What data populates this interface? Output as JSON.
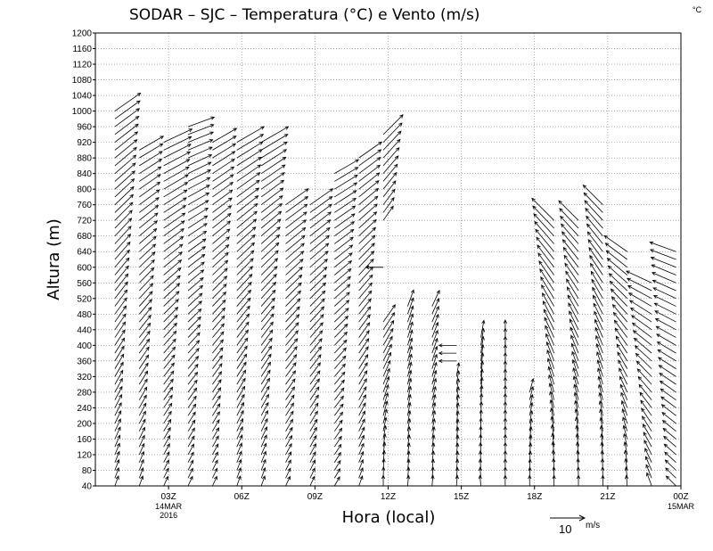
{
  "chart_data": {
    "type": "vector-field",
    "title": "SODAR – SJC – Temperatura (°C) e Vento (m/s)",
    "corner_unit": "°C",
    "xlabel": "Hora (local)",
    "ylabel": "Altura (m)",
    "ylim": [
      40,
      1200
    ],
    "y_ticks": [
      40,
      80,
      120,
      160,
      200,
      240,
      280,
      320,
      360,
      400,
      440,
      480,
      520,
      560,
      600,
      640,
      680,
      720,
      760,
      800,
      840,
      880,
      920,
      960,
      1000,
      1040,
      1080,
      1120,
      1160,
      1200
    ],
    "xlim_hours": [
      0,
      24
    ],
    "x_ticks": [
      {
        "hour": 3,
        "label": "03Z",
        "sub1": "14MAR",
        "sub2": "2016"
      },
      {
        "hour": 6,
        "label": "06Z",
        "sub1": "",
        "sub2": ""
      },
      {
        "hour": 9,
        "label": "09Z",
        "sub1": "",
        "sub2": ""
      },
      {
        "hour": 12,
        "label": "12Z",
        "sub1": "",
        "sub2": ""
      },
      {
        "hour": 15,
        "label": "15Z",
        "sub1": "",
        "sub2": ""
      },
      {
        "hour": 18,
        "label": "18Z",
        "sub1": "",
        "sub2": ""
      },
      {
        "hour": 21,
        "label": "21Z",
        "sub1": "",
        "sub2": ""
      },
      {
        "hour": 24,
        "label": "00Z",
        "sub1": "15MAR",
        "sub2": ""
      }
    ],
    "grid": true,
    "legend": {
      "value": "10",
      "unit": "m/s",
      "placement": "bottom-right"
    },
    "series": [
      {
        "hour": 0.8,
        "segments": [
          {
            "from": 40,
            "to": 1000,
            "dir_start": 200,
            "dir_end": 235,
            "speed_start": 3,
            "speed_end": 9
          }
        ]
      },
      {
        "hour": 1.8,
        "segments": [
          {
            "from": 40,
            "to": 900,
            "dir_start": 200,
            "dir_end": 240,
            "speed_start": 3,
            "speed_end": 8
          }
        ]
      },
      {
        "hour": 2.8,
        "segments": [
          {
            "from": 40,
            "to": 920,
            "dir_start": 205,
            "dir_end": 245,
            "speed_start": 3,
            "speed_end": 9
          }
        ]
      },
      {
        "hour": 3.8,
        "segments": [
          {
            "from": 40,
            "to": 960,
            "dir_start": 205,
            "dir_end": 250,
            "speed_start": 3,
            "speed_end": 8
          }
        ]
      },
      {
        "hour": 4.8,
        "segments": [
          {
            "from": 40,
            "to": 920,
            "dir_start": 205,
            "dir_end": 240,
            "speed_start": 3,
            "speed_end": 8
          }
        ]
      },
      {
        "hour": 5.8,
        "segments": [
          {
            "from": 40,
            "to": 920,
            "dir_start": 200,
            "dir_end": 240,
            "speed_start": 3,
            "speed_end": 9
          }
        ]
      },
      {
        "hour": 6.8,
        "segments": [
          {
            "from": 40,
            "to": 920,
            "dir_start": 200,
            "dir_end": 240,
            "speed_start": 3,
            "speed_end": 9
          }
        ]
      },
      {
        "hour": 7.8,
        "segments": [
          {
            "from": 40,
            "to": 760,
            "dir_start": 205,
            "dir_end": 235,
            "speed_start": 3,
            "speed_end": 8
          }
        ]
      },
      {
        "hour": 8.8,
        "segments": [
          {
            "from": 40,
            "to": 760,
            "dir_start": 205,
            "dir_end": 235,
            "speed_start": 3,
            "speed_end": 8
          }
        ]
      },
      {
        "hour": 9.8,
        "segments": [
          {
            "from": 40,
            "to": 840,
            "dir_start": 210,
            "dir_end": 240,
            "speed_start": 3,
            "speed_end": 8
          }
        ]
      },
      {
        "hour": 10.8,
        "segments": [
          {
            "from": 40,
            "to": 880,
            "dir_start": 200,
            "dir_end": 235,
            "speed_start": 3,
            "speed_end": 8
          }
        ]
      },
      {
        "hour": 11.8,
        "segments": [
          {
            "from": 40,
            "to": 460,
            "dir_start": 180,
            "dir_end": 215,
            "speed_start": 3,
            "speed_end": 6
          },
          {
            "from": 600,
            "to": 600,
            "dir_start": 90,
            "dir_end": 90,
            "speed_start": 5,
            "speed_end": 5
          },
          {
            "from": 720,
            "to": 940,
            "dir_start": 215,
            "dir_end": 225,
            "speed_start": 5,
            "speed_end": 8
          }
        ]
      },
      {
        "hour": 12.8,
        "segments": [
          {
            "from": 40,
            "to": 500,
            "dir_start": 185,
            "dir_end": 200,
            "speed_start": 3,
            "speed_end": 5
          }
        ]
      },
      {
        "hour": 13.8,
        "segments": [
          {
            "from": 40,
            "to": 500,
            "dir_start": 185,
            "dir_end": 205,
            "speed_start": 3,
            "speed_end": 5
          }
        ]
      },
      {
        "hour": 14.8,
        "segments": [
          {
            "from": 40,
            "to": 320,
            "dir_start": 185,
            "dir_end": 190,
            "speed_start": 3,
            "speed_end": 4
          },
          {
            "from": 360,
            "to": 400,
            "dir_start": 90,
            "dir_end": 90,
            "speed_start": 5,
            "speed_end": 5
          }
        ]
      },
      {
        "hour": 15.8,
        "segments": [
          {
            "from": 40,
            "to": 420,
            "dir_start": 175,
            "dir_end": 190,
            "speed_start": 3,
            "speed_end": 5
          }
        ]
      },
      {
        "hour": 16.8,
        "segments": [
          {
            "from": 40,
            "to": 420,
            "dir_start": 180,
            "dir_end": 180,
            "speed_start": 3,
            "speed_end": 5
          }
        ]
      },
      {
        "hour": 17.8,
        "segments": [
          {
            "from": 40,
            "to": 280,
            "dir_start": 180,
            "dir_end": 195,
            "speed_start": 3,
            "speed_end": 4
          }
        ]
      },
      {
        "hour": 18.8,
        "segments": [
          {
            "from": 40,
            "to": 720,
            "dir_start": 180,
            "dir_end": 135,
            "speed_start": 3,
            "speed_end": 9
          }
        ]
      },
      {
        "hour": 19.8,
        "segments": [
          {
            "from": 40,
            "to": 720,
            "dir_start": 180,
            "dir_end": 135,
            "speed_start": 3,
            "speed_end": 8
          }
        ]
      },
      {
        "hour": 20.8,
        "segments": [
          {
            "from": 40,
            "to": 760,
            "dir_start": 180,
            "dir_end": 135,
            "speed_start": 3,
            "speed_end": 8
          }
        ]
      },
      {
        "hour": 21.8,
        "segments": [
          {
            "from": 40,
            "to": 640,
            "dir_start": 175,
            "dir_end": 125,
            "speed_start": 3,
            "speed_end": 8
          }
        ]
      },
      {
        "hour": 22.8,
        "segments": [
          {
            "from": 40,
            "to": 560,
            "dir_start": 160,
            "dir_end": 115,
            "speed_start": 4,
            "speed_end": 8
          }
        ]
      },
      {
        "hour": 23.8,
        "segments": [
          {
            "from": 40,
            "to": 640,
            "dir_start": 135,
            "dir_end": 110,
            "speed_start": 4,
            "speed_end": 8
          }
        ]
      }
    ]
  }
}
